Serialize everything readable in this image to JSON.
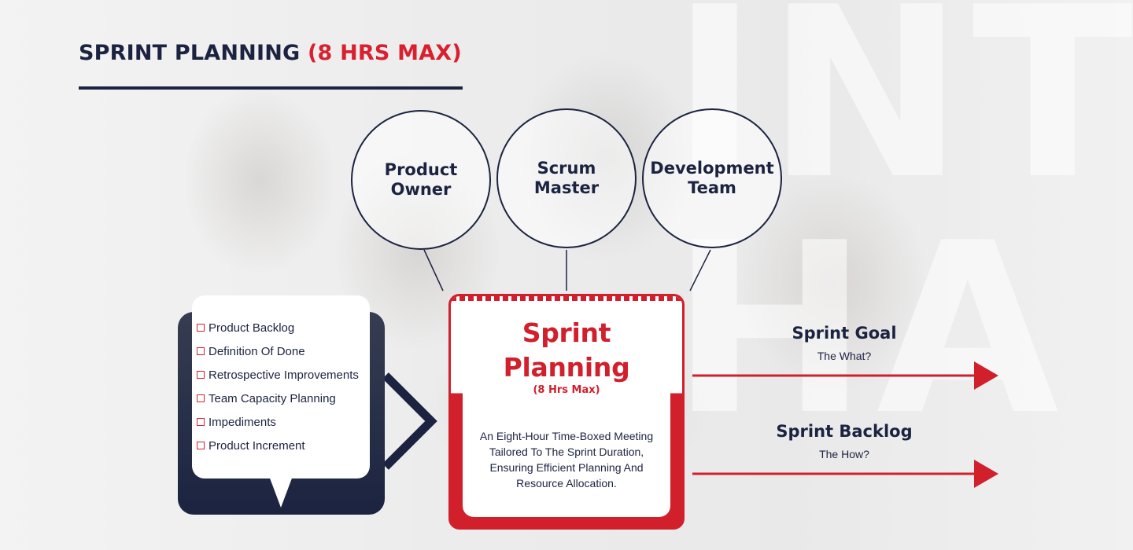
{
  "title": {
    "main": "SPRINT PLANNING",
    "accent": "(8 HRS MAX)"
  },
  "roles": [
    {
      "label": "Product\nOwner"
    },
    {
      "label": "Scrum\nMaster"
    },
    {
      "label": "Development\nTeam"
    }
  ],
  "inputs": [
    "Product Backlog",
    "Definition Of Done",
    "Retrospective Improvements",
    "Team Capacity Planning",
    "Impediments",
    "Product Increment"
  ],
  "center": {
    "title": "Sprint\nPlanning",
    "subtitle": "(8 Hrs Max)",
    "description": "An Eight-Hour Time-Boxed Meeting Tailored To The Sprint Duration, Ensuring Efficient Planning And Resource Allocation."
  },
  "outputs": [
    {
      "title": "Sprint Goal",
      "subtitle": "The What?"
    },
    {
      "title": "Sprint Backlog",
      "subtitle": "The How?"
    }
  ],
  "colors": {
    "navy": "#1b2340",
    "red": "#d21f2c"
  }
}
